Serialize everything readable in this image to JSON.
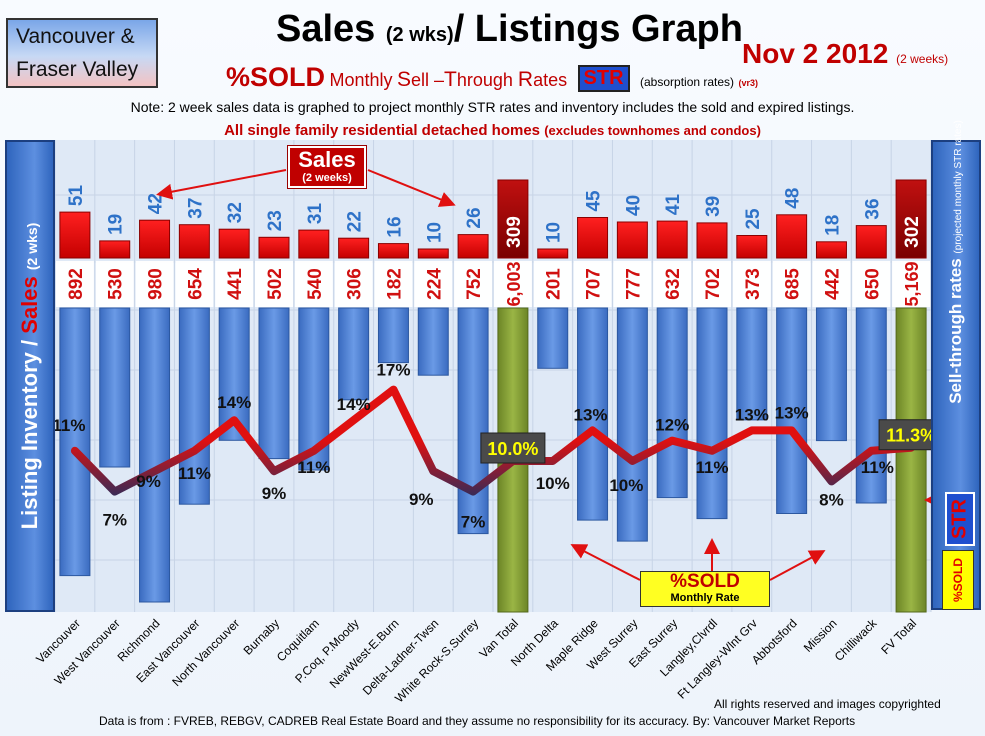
{
  "region": {
    "line1": "Vancouver &",
    "line2": "Fraser Valley"
  },
  "header": {
    "title_main": "Sales",
    "title_sub": "(2 wks)",
    "title_rest": "/ Listings Graph",
    "date": "Nov 2 2012",
    "date_note": "(2 weeks)",
    "sold_label": "%SOLD",
    "monthly_label": "Monthly",
    "s_cap": "S",
    "s_rest": "ell –",
    "t_cap": "T",
    "t_rest": "hrough ",
    "r_cap": "R",
    "r_rest": "ates",
    "str_badge": "STR",
    "absorption_note": "(absorption rates)",
    "version_note": "(vr3)",
    "note": "Note: 2 week sales data is graphed to project monthly STR rates and inventory includes the sold and expired listings.",
    "subtitle_main": "All single family residential detached homes",
    "subtitle_paren": "(excludes townhomes and condos)"
  },
  "left_axis": {
    "main": "Listing Inventory / ",
    "red": "Sales",
    "small": "(2 wks)"
  },
  "right_axis": {
    "main": "Sell-through rates",
    "small": "(projected monthly STR rates)",
    "str": "STR",
    "sold": "%SOLD"
  },
  "callouts": {
    "sales_title": "Sales",
    "sales_sub": "(2 weeks)",
    "sold_title": "%SOLD",
    "sold_sub": "Monthly Rate"
  },
  "footer": {
    "rights": "All rights reserved and  images copyrighted",
    "source": "Data is from : FVREB, REBGV, CADREB Real Estate Board and they assume no responsibility for its accuracy. By: Vancouver Market Reports"
  },
  "colors": {
    "sales_bar": "#e31010",
    "total_sales_bar": "#a00000",
    "listing_bar": "#4a7fd6",
    "total_listing_bar": "#7f9a30",
    "line_low": "#1c2d4a",
    "line_high": "#e01010",
    "total_rate_box": "#4a4a4a",
    "total_rate_text": "#ffff00"
  },
  "chart_data": {
    "type": "bar",
    "categories": [
      "Vancouver",
      "West Vancouver",
      "Richmond",
      "East Vancouver",
      "North Vancouver",
      "Burnaby",
      "Coquitlam",
      "P.Coq, P.Moody",
      "NewWest-E.Burn",
      "Delta-Ladner-Twsn",
      "White Rock-S.Surrey",
      "Van Total",
      "North Delta",
      "Maple Ridge",
      "West Surrey",
      "East Surrey",
      "Langley,Clvrdl",
      "Ft Langley-Wlnt Grv",
      "Abbotsford",
      "Mission",
      "Chilliwack",
      "FV Total"
    ],
    "series": [
      {
        "values": [
          51,
          19,
          42,
          37,
          32,
          23,
          31,
          22,
          16,
          10,
          26,
          309,
          10,
          45,
          40,
          41,
          39,
          25,
          48,
          18,
          36,
          302
        ]
      },
      {
        "values": [
          892,
          530,
          980,
          654,
          441,
          502,
          540,
          306,
          182,
          224,
          752,
          6003,
          201,
          707,
          777,
          632,
          702,
          373,
          685,
          442,
          650,
          5169
        ]
      },
      {
        "values": [
          11,
          7,
          9,
          11,
          14,
          9,
          11,
          14,
          17,
          9,
          7,
          10.0,
          10,
          13,
          10,
          12,
          11,
          13,
          13,
          8,
          11,
          11.3
        ]
      }
    ],
    "sales_labels": [
      "51",
      "19",
      "42",
      "37",
      "32",
      "23",
      "31",
      "22",
      "16",
      "10",
      "26",
      "309",
      "10",
      "45",
      "40",
      "41",
      "39",
      "25",
      "48",
      "18",
      "36",
      "302"
    ],
    "listing_labels": [
      "892",
      "530",
      "980",
      "654",
      "441",
      "502",
      "540",
      "306",
      "182",
      "224",
      "752",
      "6,003",
      "201",
      "707",
      "777",
      "632",
      "702",
      "373",
      "685",
      "442",
      "650",
      "5,169"
    ],
    "rate_labels": [
      "11%",
      "7%",
      "9%",
      "11%",
      "14%",
      "9%",
      "11%",
      "14%",
      "17%",
      "9%",
      "7%",
      "10.0%",
      "10%",
      "13%",
      "10%",
      "12%",
      "11%",
      "13%",
      "13%",
      "8%",
      "11%",
      "11.3%"
    ],
    "total_indices": [
      11,
      21
    ],
    "grid": true
  }
}
